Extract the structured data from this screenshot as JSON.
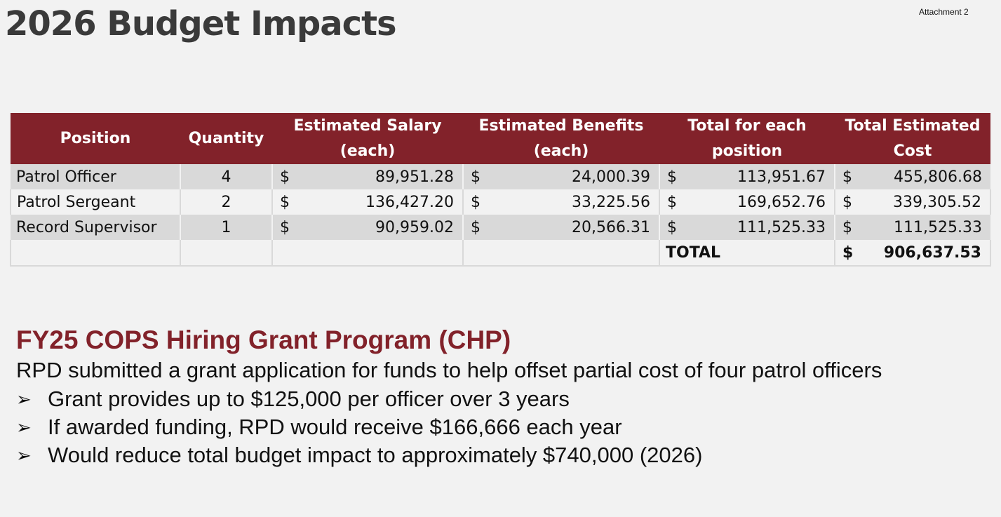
{
  "attachment_label": "Attachment 2",
  "title": "2026 Budget Impacts",
  "table": {
    "headers": {
      "position": "Position",
      "quantity": "Quantity",
      "salary_line1": "Estimated Salary",
      "salary_line2": "(each)",
      "benefits_line1": "Estimated Benefits",
      "benefits_line2": "(each)",
      "per_position_line1": "Total for each",
      "per_position_line2": "position",
      "total_cost_line1": "Total Estimated",
      "total_cost_line2": "Cost"
    },
    "currency_symbol": "$",
    "rows": [
      {
        "position": "Patrol Officer",
        "quantity": "4",
        "salary": "89,951.28",
        "benefits": "24,000.39",
        "per_position": "113,951.67",
        "total_cost": "455,806.68"
      },
      {
        "position": "Patrol Sergeant",
        "quantity": "2",
        "salary": "136,427.20",
        "benefits": "33,225.56",
        "per_position": "169,652.76",
        "total_cost": "339,305.52"
      },
      {
        "position": "Record Supervisor",
        "quantity": "1",
        "salary": "90,959.02",
        "benefits": "20,566.31",
        "per_position": "111,525.33",
        "total_cost": "111,525.33"
      }
    ],
    "total_label": "TOTAL",
    "total_value": "906,637.53"
  },
  "grant": {
    "title": "FY25 COPS Hiring Grant Program (CHP)",
    "intro": "RPD submitted a grant application for funds to help offset partial cost of four patrol officers",
    "bullets": [
      "Grant provides up to $125,000 per officer over 3 years",
      "If awarded funding, RPD would receive $166,666 each year",
      "Would reduce total budget impact to approximately $740,000 (2026)"
    ]
  }
}
